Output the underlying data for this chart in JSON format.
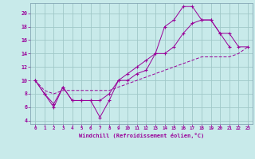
{
  "background_color": "#c8eaea",
  "grid_color": "#a0c8c8",
  "line_color": "#990099",
  "xlabel": "Windchill (Refroidissement éolien,°C)",
  "xlim": [
    -0.5,
    23.5
  ],
  "ylim": [
    3.5,
    21.5
  ],
  "xticks": [
    0,
    1,
    2,
    3,
    4,
    5,
    6,
    7,
    8,
    9,
    10,
    11,
    12,
    13,
    14,
    15,
    16,
    17,
    18,
    19,
    20,
    21,
    22,
    23
  ],
  "yticks": [
    4,
    6,
    8,
    10,
    12,
    14,
    16,
    18,
    20
  ],
  "line1_x": [
    0,
    1,
    2,
    3,
    4,
    5,
    6,
    7,
    8,
    9,
    10,
    11,
    12,
    13,
    14,
    15,
    16,
    17,
    18,
    19,
    20,
    21
  ],
  "line1_y": [
    10,
    8,
    6,
    9,
    7,
    7,
    7,
    4.5,
    7,
    10,
    10,
    11,
    11.5,
    14,
    18,
    19,
    21,
    21,
    19,
    19,
    17,
    15
  ],
  "line2_x": [
    0,
    1,
    2,
    3,
    4,
    5,
    6,
    7,
    8,
    9,
    10,
    11,
    12,
    13,
    14,
    15,
    16,
    17,
    18,
    19,
    20,
    21,
    22,
    23
  ],
  "line2_y": [
    10,
    8,
    6.5,
    9,
    7,
    7,
    7,
    7,
    8,
    10,
    11,
    12,
    13,
    14,
    14,
    15,
    17,
    18.5,
    19,
    19,
    17,
    17,
    15,
    15
  ],
  "line3_x": [
    0,
    1,
    2,
    3,
    4,
    5,
    6,
    7,
    8,
    9,
    10,
    11,
    12,
    13,
    14,
    15,
    16,
    17,
    18,
    19,
    20,
    21,
    22,
    23
  ],
  "line3_y": [
    10,
    8.5,
    8,
    8.5,
    8.5,
    8.5,
    8.5,
    8.5,
    8.5,
    9,
    9.5,
    10,
    10.5,
    11,
    11.5,
    12,
    12.5,
    13,
    13.5,
    13.5,
    13.5,
    13.5,
    14,
    15
  ]
}
